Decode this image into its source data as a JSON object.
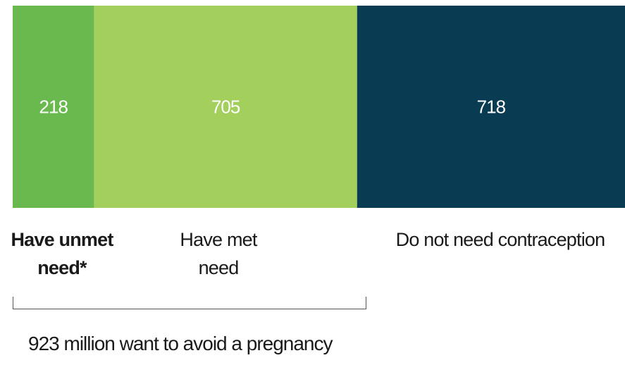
{
  "chart_data": {
    "type": "bar",
    "orientation": "horizontal-stacked",
    "categories": [
      "Have unmet need*",
      "Have met need",
      "Do not need contraception"
    ],
    "values": [
      218,
      705,
      718
    ],
    "colors": [
      "#6ab94e",
      "#a3cf5d",
      "#093b52"
    ],
    "value_labels": [
      "218",
      "705",
      "718"
    ],
    "label_lines": [
      [
        "Have unmet",
        "need*"
      ],
      [
        "Have met",
        "need"
      ],
      [
        "Do not need contraception"
      ]
    ],
    "label_bold": [
      true,
      false,
      false
    ],
    "bracket_caption": "923 million want to avoid a pregnancy"
  }
}
